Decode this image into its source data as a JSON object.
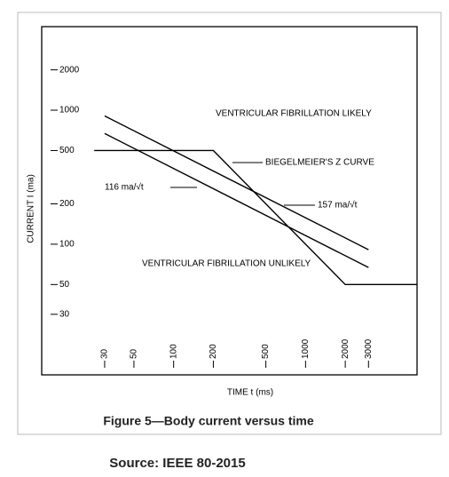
{
  "chart_data": {
    "type": "line",
    "caption": "Figure 5—Body current versus time",
    "source": "Source: IEEE 80-2015",
    "x_label": "TIME t (ms)",
    "y_label": "CURRENT I (ma)",
    "xscale": "log",
    "yscale": "log",
    "xlim": [
      10,
      7000
    ],
    "ylim": [
      10.6,
      4200
    ],
    "xticks": [
      30,
      50,
      100,
      200,
      500,
      1000,
      2000,
      3000
    ],
    "yticks": [
      2000,
      1000,
      500,
      200,
      100,
      50,
      30
    ],
    "series": [
      {
        "name": "BIEGELMEIER'S Z CURVE",
        "color": "#000000",
        "x": [
          25,
          200,
          2000,
          7000
        ],
        "values": [
          500,
          500,
          50,
          50
        ]
      },
      {
        "name": "116 ma/√t",
        "color": "#000000",
        "x": [
          30,
          3000
        ],
        "values": [
          670,
          67
        ]
      },
      {
        "name": "157 ma/√t",
        "color": "#000000",
        "x": [
          30,
          3000
        ],
        "values": [
          906,
          91
        ]
      }
    ],
    "annotations": [
      "VENTRICULAR FIBRILLATION LIKELY",
      "VENTRICULAR FIBRILLATION UNLIKELY"
    ]
  }
}
